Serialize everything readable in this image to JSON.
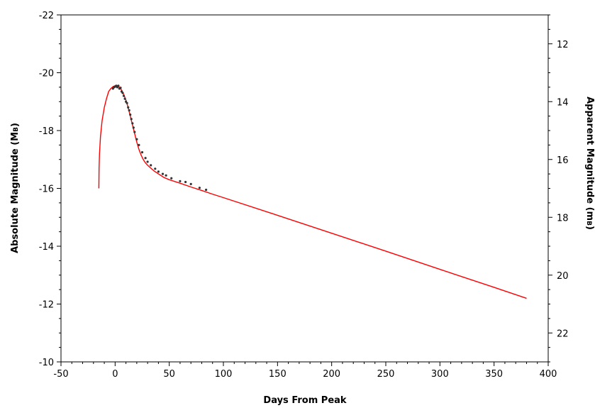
{
  "chart_data": {
    "type": "line",
    "xlabel": "Days From Peak",
    "ylabel": "Absolute Magnitude (M",
    "ylabel_sub": "B",
    "ylabel_close": ")",
    "y2label": "Apparent Magnitude (m",
    "y2label_sub": "B",
    "y2label_close": ")",
    "xlim": [
      -50,
      400
    ],
    "ylim": [
      -22,
      -10
    ],
    "y_inverted": true,
    "y2lim": [
      11,
      23
    ],
    "x_ticks": [
      -50,
      0,
      50,
      100,
      150,
      200,
      250,
      300,
      350,
      400
    ],
    "x_tick_labels": [
      "-50",
      "0",
      "50",
      "100",
      "150",
      "200",
      "250",
      "300",
      "350",
      "400"
    ],
    "y_ticks": [
      -22,
      -20,
      -18,
      -16,
      -14,
      -12,
      -10
    ],
    "y_tick_labels": [
      "-22",
      "-20",
      "-18",
      "-16",
      "-14",
      "-12",
      "-10"
    ],
    "y2_ticks": [
      12,
      14,
      16,
      18,
      20,
      22
    ],
    "y2_tick_labels": [
      "12",
      "14",
      "16",
      "18",
      "20",
      "22"
    ],
    "grid": false,
    "series": [
      {
        "style": "line",
        "color": "#ff0000",
        "x": [
          -15,
          -14.8,
          -14.4,
          -13.5,
          -12,
          -10,
          -8,
          -6,
          -4,
          -2,
          0,
          2,
          4,
          6,
          8,
          10,
          12,
          14,
          16,
          18,
          20,
          22,
          24,
          26,
          28,
          30,
          33,
          36,
          40,
          45,
          50,
          60,
          70,
          80,
          90,
          100,
          150,
          200,
          250,
          300,
          350,
          380
        ],
        "y": [
          -16.0,
          -16.7,
          -17.2,
          -17.8,
          -18.35,
          -18.8,
          -19.1,
          -19.35,
          -19.45,
          -19.52,
          -19.55,
          -19.55,
          -19.5,
          -19.4,
          -19.25,
          -19.05,
          -18.8,
          -18.5,
          -18.2,
          -17.9,
          -17.6,
          -17.35,
          -17.15,
          -17.0,
          -16.88,
          -16.8,
          -16.7,
          -16.6,
          -16.5,
          -16.38,
          -16.3,
          -16.18,
          -16.05,
          -15.93,
          -15.8,
          -15.68,
          -15.07,
          -14.45,
          -13.83,
          -13.2,
          -12.58,
          -12.2
        ]
      },
      {
        "style": "points",
        "color": "#333333",
        "x": [
          -2,
          -1,
          0,
          1,
          2,
          3,
          4,
          5,
          6,
          7,
          8,
          9,
          10,
          11,
          12,
          13,
          14,
          15,
          16,
          17,
          18,
          20,
          22,
          25,
          28,
          30,
          33,
          37,
          40,
          44,
          47,
          52,
          60,
          65,
          70,
          78,
          84
        ],
        "y": [
          -19.45,
          -19.5,
          -19.52,
          -19.55,
          -19.5,
          -19.55,
          -19.45,
          -19.48,
          -19.35,
          -19.3,
          -19.2,
          -19.1,
          -19.0,
          -18.95,
          -18.8,
          -18.7,
          -18.55,
          -18.4,
          -18.25,
          -18.1,
          -17.95,
          -17.7,
          -17.5,
          -17.25,
          -17.05,
          -16.92,
          -16.8,
          -16.68,
          -16.58,
          -16.5,
          -16.45,
          -16.35,
          -16.25,
          -16.22,
          -16.15,
          -16.02,
          -15.95
        ]
      }
    ]
  }
}
